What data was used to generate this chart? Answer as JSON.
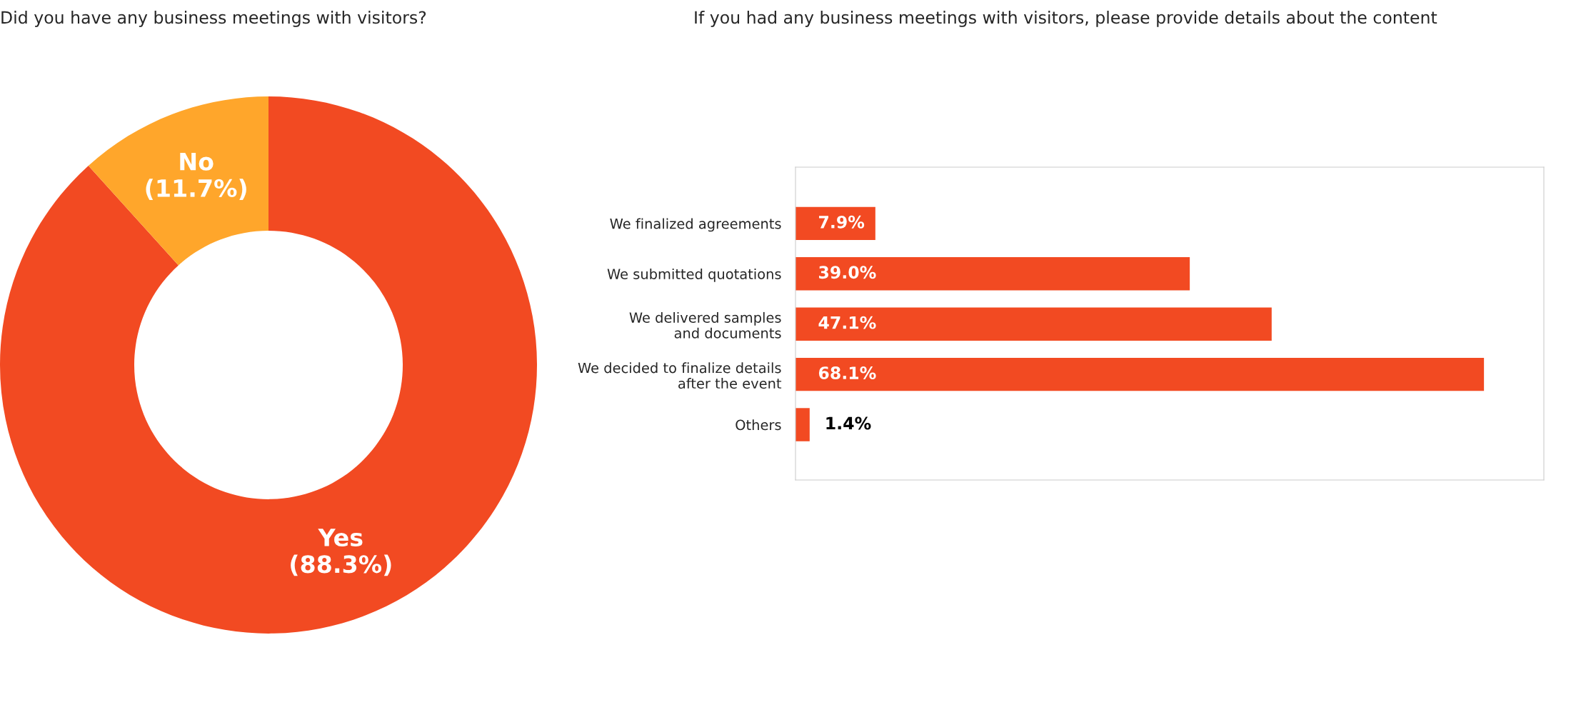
{
  "chart_data": [
    {
      "type": "donut",
      "title": "Did you have any business meetings with visitors?",
      "categories": [
        "Yes",
        "No"
      ],
      "values": [
        88.3,
        11.7
      ],
      "colors": [
        "#f24a22",
        "#ffa62b"
      ],
      "value_labels": [
        "(88.3%)",
        "(11.7%)"
      ]
    },
    {
      "type": "bar",
      "orientation": "horizontal",
      "title": "If you had any business meetings with visitors, please provide details about the content",
      "categories": [
        "We finalized agreements",
        "We submitted quotations",
        "We delivered samples\nand documents",
        "We decided to finalize details\nafter the event",
        "Others"
      ],
      "values": [
        7.9,
        39.0,
        47.1,
        68.1,
        1.4
      ],
      "color": "#f24a22",
      "value_labels": [
        "7.9%",
        "39.0%",
        "47.1%",
        "68.1%",
        "1.4%"
      ]
    }
  ]
}
